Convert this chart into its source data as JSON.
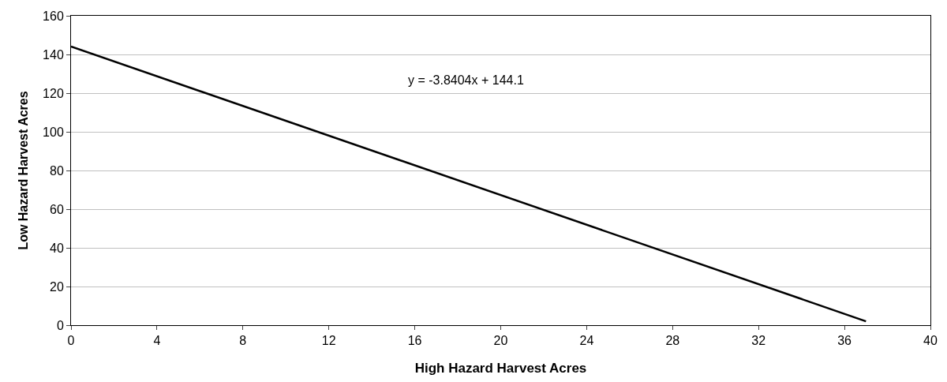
{
  "chart_data": {
    "type": "line",
    "xlabel": "High Hazard Harvest Acres",
    "ylabel": "Low Hazard Harvest Acres",
    "x": [
      0,
      37
    ],
    "series": [
      {
        "color": "#000000",
        "values": [
          144.1,
          2
        ]
      }
    ],
    "xlim": [
      0,
      40
    ],
    "xticks": [
      0,
      4,
      8,
      12,
      16,
      20,
      24,
      28,
      32,
      36,
      40
    ],
    "ylim": [
      0,
      160
    ],
    "yticks": [
      0,
      20,
      40,
      60,
      80,
      100,
      120,
      140,
      160
    ],
    "grid": "y",
    "marker": "none",
    "line_style": "solid",
    "annotations": [
      "y = -3.8404x + 144.1"
    ]
  }
}
